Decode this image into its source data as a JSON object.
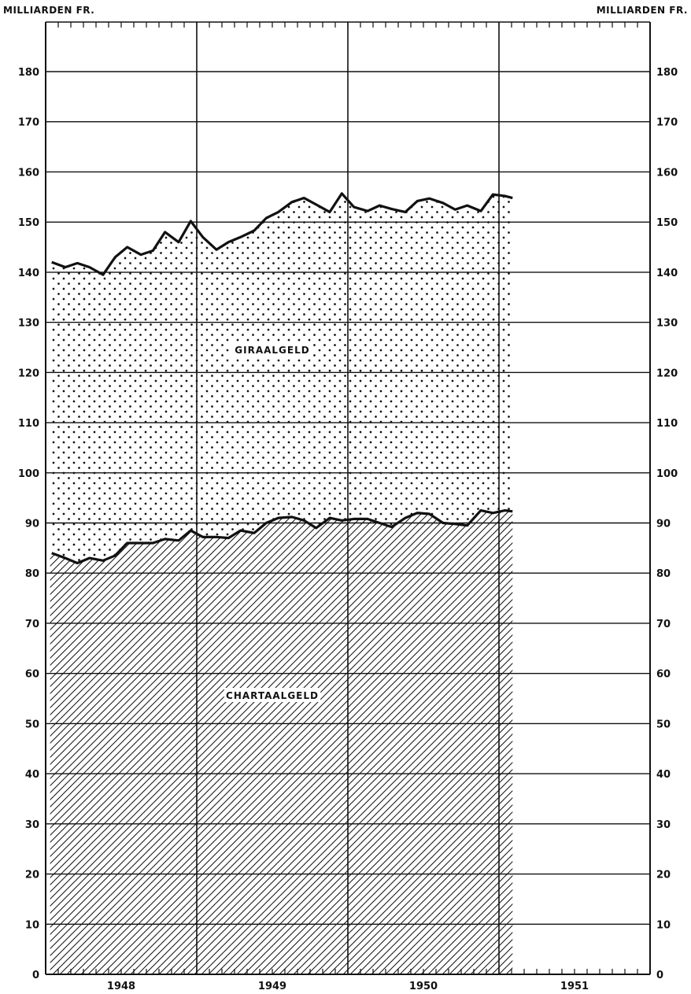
{
  "chart_data": {
    "type": "area",
    "title": "",
    "ylabel_left": "MILLIARDEN FR.",
    "ylabel_right": "MILLIARDEN FR.",
    "ylim": [
      0,
      190
    ],
    "yticks": [
      0,
      10,
      20,
      30,
      40,
      50,
      60,
      70,
      80,
      90,
      100,
      110,
      120,
      130,
      140,
      150,
      160,
      170,
      180
    ],
    "xlim": [
      1948,
      1952
    ],
    "x_unit": "year (monthly observations)",
    "year_labels": [
      {
        "label": "1948",
        "center": 1948.5
      },
      {
        "label": "1949",
        "center": 1949.5
      },
      {
        "label": "1950",
        "center": 1950.5
      },
      {
        "label": "1951",
        "center": 1951.5
      }
    ],
    "year_dividers": [
      1949,
      1950,
      1951
    ],
    "grid": true,
    "stacked": true,
    "x": [
      1948.04,
      1948.13,
      1948.21,
      1948.29,
      1948.38,
      1948.46,
      1948.54,
      1948.63,
      1948.71,
      1948.79,
      1948.88,
      1948.96,
      1949.04,
      1949.13,
      1949.21,
      1949.29,
      1949.38,
      1949.46,
      1949.54,
      1949.63,
      1949.71,
      1949.79,
      1949.88,
      1949.96,
      1950.04,
      1950.13,
      1950.21,
      1950.29,
      1950.38,
      1950.46,
      1950.54,
      1950.63,
      1950.71,
      1950.79,
      1950.88,
      1950.96,
      1951.04,
      1951.09
    ],
    "series": [
      {
        "name": "CHARTAALGELD",
        "fill": "hatch",
        "values": [
          84,
          83,
          82,
          83,
          82.5,
          83.5,
          86,
          86,
          86,
          86.8,
          86.5,
          88.5,
          87.2,
          87.2,
          87,
          88.5,
          88,
          90,
          91,
          91.2,
          90.5,
          89,
          91,
          90.5,
          90.8,
          90.8,
          90,
          89.2,
          91,
          92,
          91.8,
          90,
          89.8,
          89.5,
          92.5,
          92,
          92.5,
          92.3
        ]
      },
      {
        "name": "GIRAALGELD",
        "fill": "dots",
        "total_values": [
          142,
          141,
          141.8,
          141,
          139.5,
          143,
          145,
          143.5,
          144.3,
          148,
          146,
          150.2,
          147,
          144.5,
          146,
          147,
          148.3,
          150.8,
          152,
          154,
          154.8,
          153.5,
          152,
          155.7,
          153,
          152.2,
          153.3,
          152.6,
          152,
          154.2,
          154.7,
          153.8,
          152.5,
          153.3,
          152.2,
          155.5,
          155.2,
          154.8
        ]
      }
    ]
  }
}
